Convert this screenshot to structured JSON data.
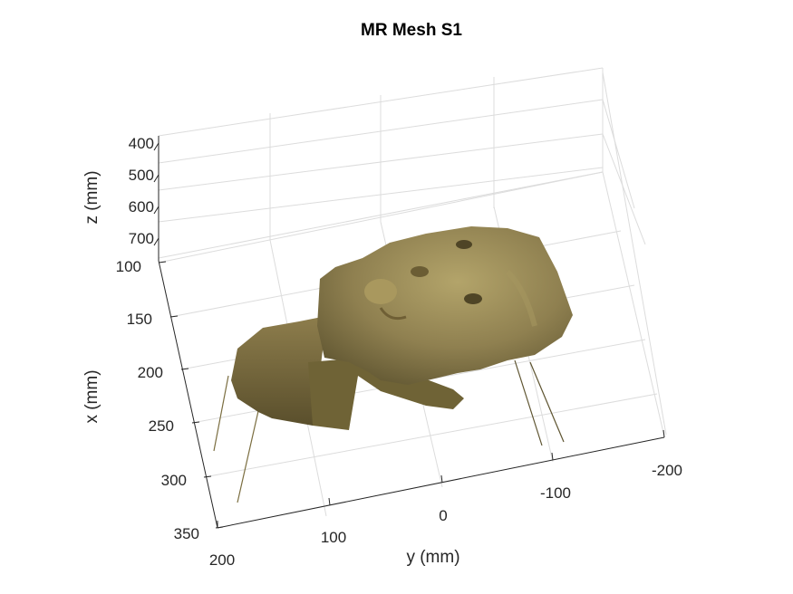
{
  "chart_data": {
    "type": "surface",
    "title": "MR Mesh S1",
    "xlabel": "x (mm)",
    "ylabel": "y (mm)",
    "zlabel": "z (mm)",
    "x_ticks": [
      "100",
      "150",
      "200",
      "250",
      "300",
      "350"
    ],
    "y_ticks": [
      "200",
      "100",
      "0",
      "-100",
      "-200"
    ],
    "z_ticks": [
      "400",
      "500",
      "600",
      "700"
    ],
    "xlim": [
      100,
      350
    ],
    "ylim": [
      -200,
      200
    ],
    "zlim": [
      400,
      700
    ],
    "grid": true,
    "surface_color": "#8a7d4a"
  }
}
